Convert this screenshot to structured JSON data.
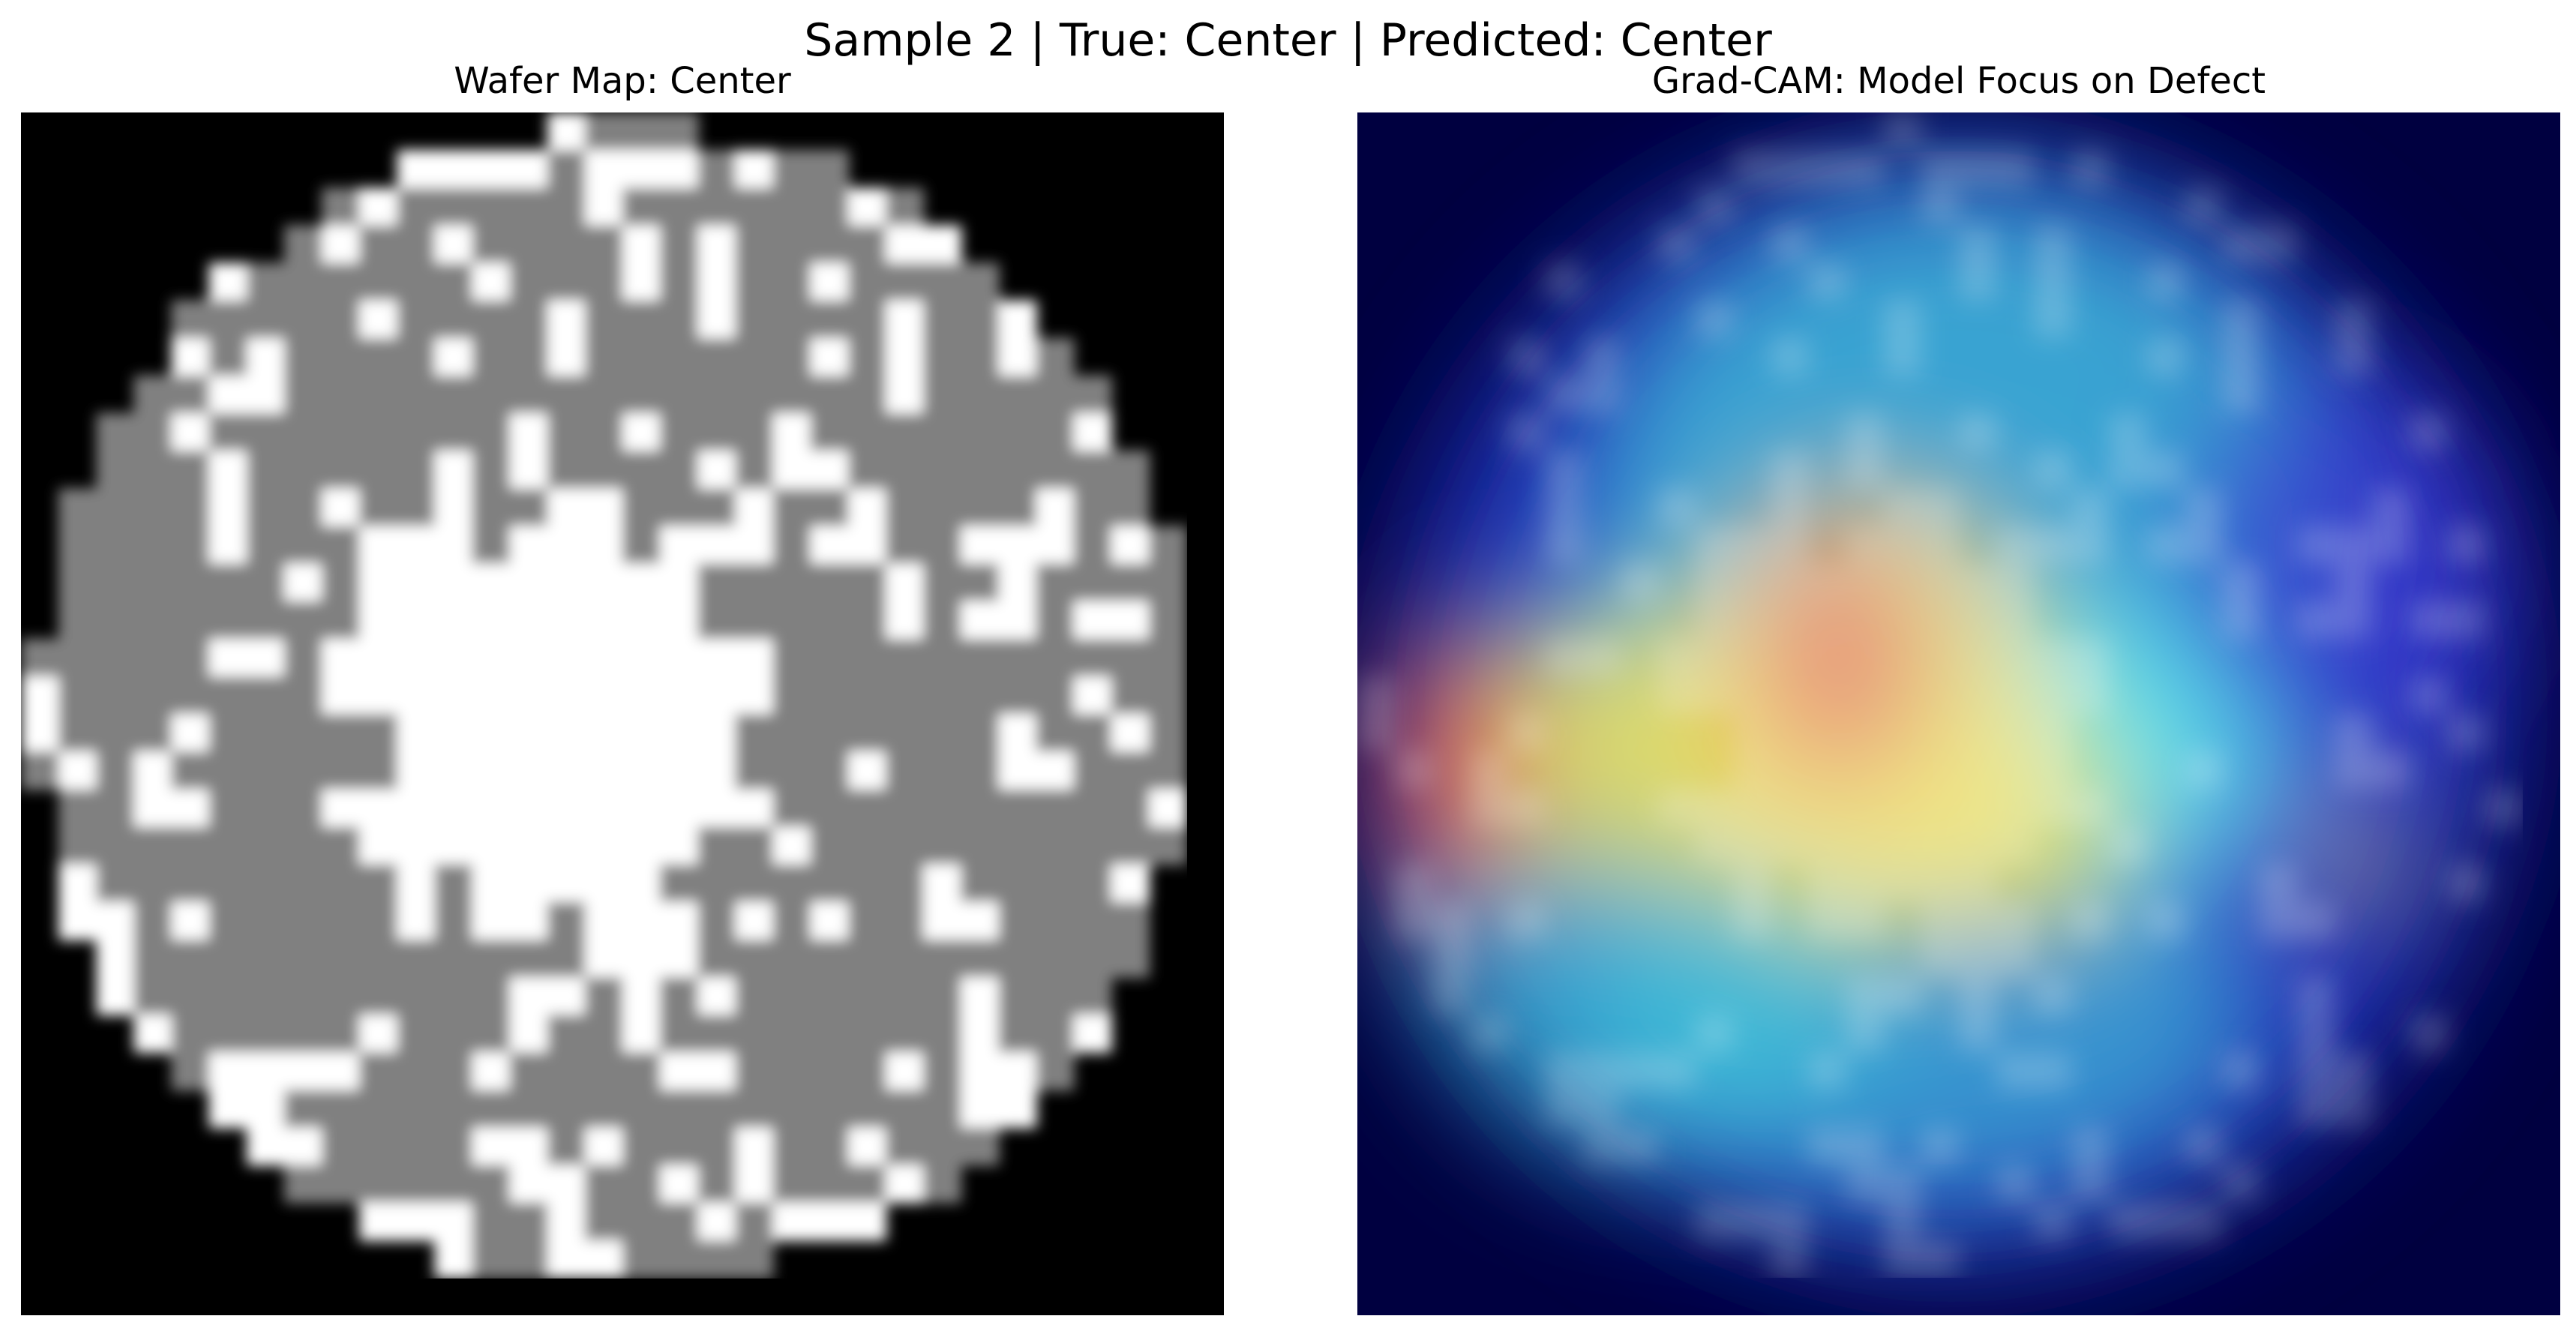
{
  "figure": {
    "suptitle": "Sample 2 | True: Center | Predicted: Center"
  },
  "panels": [
    {
      "title": "Wafer Map: Center",
      "kind": "wafer-map",
      "grid_size": 32,
      "colors": {
        "background": "#000000",
        "normal_die": "#808080",
        "defect_die": "#ffffff"
      }
    },
    {
      "title": "Grad-CAM: Model Focus on Defect",
      "kind": "grad-cam-overlay",
      "grid_size": 32,
      "colormap": "jet",
      "colors": {
        "background": "#000033",
        "low": "#0a1a8a",
        "mid": "#5ad8e0",
        "high_yellow": "#f0e060",
        "peak": "#e05050"
      }
    }
  ]
}
